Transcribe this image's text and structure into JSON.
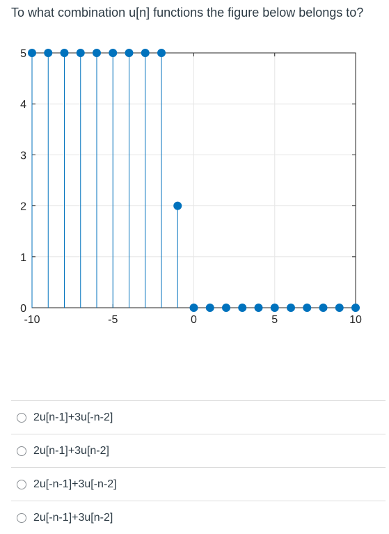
{
  "question": {
    "text": "To what combination u[n] functions the figure below belongs to?"
  },
  "chart_data": {
    "type": "stem",
    "title": "",
    "xlabel": "",
    "ylabel": "",
    "x": [
      -10,
      -9,
      -8,
      -7,
      -6,
      -5,
      -4,
      -3,
      -2,
      -1,
      0,
      1,
      2,
      3,
      4,
      5,
      6,
      7,
      8,
      9,
      10
    ],
    "y": [
      5,
      5,
      5,
      5,
      5,
      5,
      5,
      5,
      5,
      2,
      0,
      0,
      0,
      0,
      0,
      0,
      0,
      0,
      0,
      0,
      0
    ],
    "xlim": [
      -10,
      10
    ],
    "ylim": [
      0,
      5
    ],
    "xticks": [
      -10,
      -5,
      0,
      5,
      10
    ],
    "yticks": [
      0,
      1,
      2,
      3,
      4,
      5
    ],
    "xtick_labels": [
      "-10",
      "-5",
      "0",
      "5",
      "10"
    ],
    "ytick_labels": [
      "0",
      "1",
      "2",
      "3",
      "4",
      "5"
    ],
    "grid": true,
    "color": "#0072bd",
    "grid_color": "#e6e6e6",
    "axis_color": "#262626"
  },
  "answers": [
    {
      "label": "2u[n-1]+3u[-n-2]"
    },
    {
      "label": "2u[n-1]+3u[n-2]"
    },
    {
      "label": "2u[-n-1]+3u[-n-2]"
    },
    {
      "label": "2u[-n-1]+3u[n-2]"
    }
  ]
}
